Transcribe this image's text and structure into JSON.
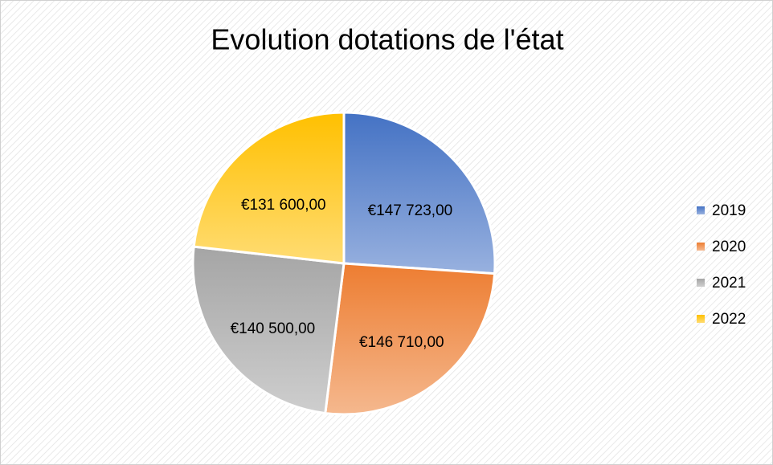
{
  "chart_data": {
    "type": "pie",
    "title": "Evolution dotations de l'état",
    "categories": [
      "2019",
      "2020",
      "2021",
      "2022"
    ],
    "values": [
      147723,
      146710,
      140500,
      131600
    ],
    "value_labels": [
      "€147 723,00",
      "€146 710,00",
      "€140 500,00",
      "€131 600,00"
    ],
    "colors": [
      "#4472c4",
      "#ed7d31",
      "#a5a5a5",
      "#ffc000"
    ],
    "legend": "right"
  }
}
